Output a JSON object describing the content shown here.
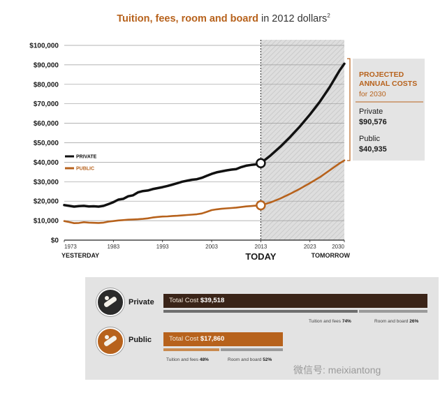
{
  "title": {
    "main": "Tuition, fees, room and board",
    "rest": " in 2012 dollars",
    "sup": "2"
  },
  "chart_data": {
    "type": "line",
    "ylim": [
      0,
      100000
    ],
    "xlim": [
      1973,
      2030
    ],
    "y_ticks": [
      "$0",
      "$10,000",
      "$20,000",
      "$30,000",
      "$40,000",
      "$50,000",
      "$60,000",
      "$70,000",
      "$80,000",
      "$90,000",
      "$100,000"
    ],
    "y_tick_values": [
      0,
      10000,
      20000,
      30000,
      40000,
      50000,
      60000,
      70000,
      80000,
      90000,
      100000
    ],
    "x_ticks": [
      "1973",
      "1983",
      "1993",
      "2003",
      "2013",
      "2023",
      "2030"
    ],
    "x_tick_values": [
      1973,
      1983,
      1993,
      2003,
      2013,
      2023,
      2030
    ],
    "x_captions": {
      "left": "YESTERDAY",
      "center": "TODAY",
      "right": "TOMORROW"
    },
    "shaded_from": 2013,
    "grid": true,
    "series": [
      {
        "name": "PRIVATE",
        "color": "#111111",
        "x": [
          1973,
          1974,
          1975,
          1976,
          1977,
          1978,
          1979,
          1980,
          1981,
          1982,
          1983,
          1984,
          1985,
          1986,
          1987,
          1988,
          1989,
          1990,
          1991,
          1992,
          1993,
          1994,
          1995,
          1996,
          1997,
          1998,
          1999,
          2000,
          2001,
          2002,
          2003,
          2004,
          2005,
          2006,
          2007,
          2008,
          2009,
          2010,
          2011,
          2012,
          2013,
          2015,
          2017,
          2019,
          2021,
          2023,
          2025,
          2027,
          2029,
          2030
        ],
        "values": [
          18000,
          17600,
          17200,
          17500,
          17600,
          17300,
          17400,
          17200,
          17600,
          18500,
          19500,
          20800,
          21200,
          22500,
          23000,
          24500,
          25200,
          25500,
          26200,
          26700,
          27200,
          27800,
          28500,
          29200,
          30000,
          30500,
          31000,
          31300,
          32000,
          33000,
          34000,
          34800,
          35300,
          35800,
          36200,
          36500,
          37500,
          38200,
          38600,
          38900,
          39518,
          43500,
          48000,
          53000,
          58500,
          64500,
          71000,
          78500,
          87000,
          90576
        ]
      },
      {
        "name": "PUBLIC",
        "color": "#b7621c",
        "x": [
          1973,
          1974,
          1975,
          1976,
          1977,
          1978,
          1979,
          1980,
          1981,
          1982,
          1983,
          1984,
          1985,
          1986,
          1987,
          1988,
          1989,
          1990,
          1991,
          1992,
          1993,
          1994,
          1995,
          1996,
          1997,
          1998,
          1999,
          2000,
          2001,
          2002,
          2003,
          2004,
          2005,
          2006,
          2007,
          2008,
          2009,
          2010,
          2011,
          2012,
          2013,
          2015,
          2017,
          2019,
          2021,
          2023,
          2025,
          2027,
          2029,
          2030
        ],
        "values": [
          9800,
          9300,
          8700,
          8800,
          9200,
          9000,
          8900,
          8800,
          9000,
          9500,
          9800,
          10100,
          10300,
          10500,
          10600,
          10700,
          10900,
          11200,
          11600,
          11900,
          12100,
          12200,
          12400,
          12500,
          12700,
          12900,
          13100,
          13300,
          13700,
          14500,
          15400,
          15800,
          16100,
          16300,
          16500,
          16700,
          17000,
          17300,
          17500,
          17700,
          17860,
          19400,
          21400,
          23800,
          26400,
          29300,
          32300,
          35800,
          39400,
          40935
        ]
      }
    ],
    "legend": [
      "PRIVATE",
      "PUBLIC"
    ],
    "projection": {
      "heading1": "PROJECTED",
      "heading2": "ANNUAL COSTS",
      "sub": "for 2030",
      "private_label": "Private",
      "private_value": "$90,576",
      "public_label": "Public",
      "public_value": "$40,935"
    }
  },
  "totals": {
    "private": {
      "label": "Private",
      "cost_prefix": "Total Cost",
      "cost": "$39,518",
      "cost_value": 39518,
      "tuition_label": "Tuition and fees",
      "tuition_pct": "74%",
      "room_label": "Room and board",
      "room_pct": "26%",
      "color": "#3a2418"
    },
    "public": {
      "label": "Public",
      "cost_prefix": "Total Cost",
      "cost": "$17,860",
      "cost_value": 17860,
      "tuition_label": "Tuition and fees",
      "tuition_pct": "48%",
      "room_label": "Room and board",
      "room_pct": "52%",
      "color": "#b7621c"
    }
  },
  "watermark": "微信号: meixiantong"
}
